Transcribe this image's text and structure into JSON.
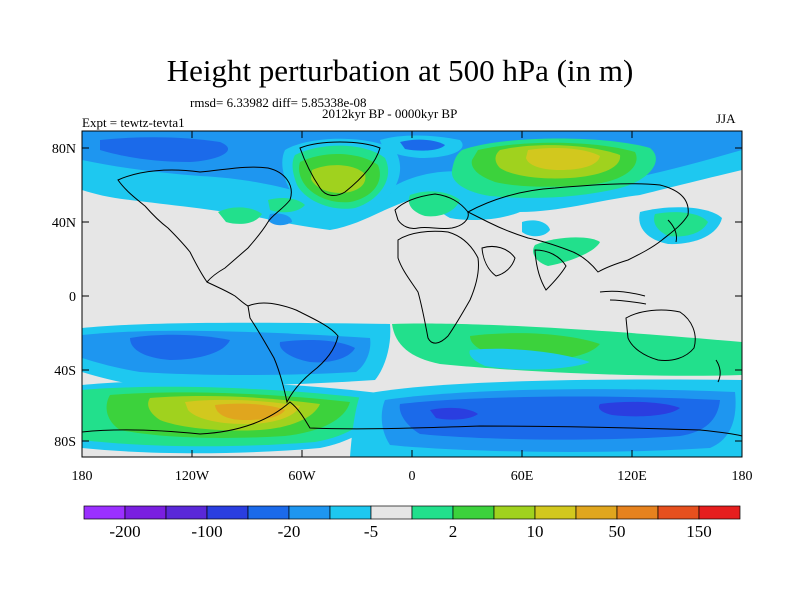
{
  "title": "Height perturbation at 500 hPa (in m)",
  "stats": "rmsd= 6.33982 diff= 5.85338e-08",
  "period": "2012kyr BP - 0000kyr BP",
  "experiment": "Expt = tewtz-tevta1",
  "season": "JJA",
  "lat_ticks": [
    "80N",
    "40N",
    "0",
    "40S",
    "80S"
  ],
  "lon_ticks": [
    "180",
    "120W",
    "60W",
    "0",
    "60E",
    "120E",
    "180"
  ],
  "colorbar": {
    "colors": [
      "#9b30ff",
      "#7a1fe0",
      "#5a28d8",
      "#2a3ee0",
      "#1b6aea",
      "#1e96f0",
      "#1ec8f0",
      "#e6e6e6",
      "#22e08c",
      "#3cd23c",
      "#a0d21e",
      "#d2c81e",
      "#e0a61e",
      "#e6821e",
      "#e6501e",
      "#e61e1e"
    ],
    "labels": [
      "-200",
      "-100",
      "-20",
      "-5",
      "2",
      "10",
      "50",
      "150"
    ]
  },
  "palette": {
    "neutral": "#e6e6e6",
    "light_blue": "#1ec8f0",
    "mid_blue": "#1e96f0",
    "blue": "#1b6aea",
    "dark_blue": "#2a3ee0",
    "green": "#22e08c",
    "lime": "#3cd23c",
    "yellow_green": "#a0d21e",
    "olive": "#d2c81e",
    "orange": "#e0a61e",
    "coast": "#000000"
  }
}
